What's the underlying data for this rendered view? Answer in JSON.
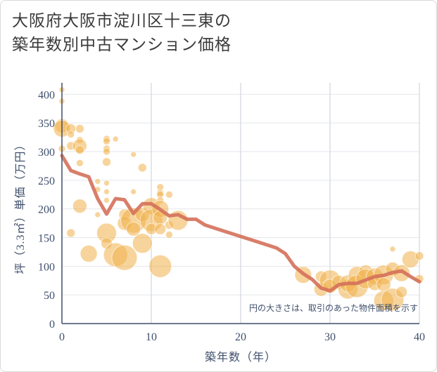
{
  "title_lines": [
    "大阪府大阪市淀川区十三東の",
    "築年数別中古マンション価格"
  ],
  "chart_data": {
    "type": "scatter",
    "title": "大阪府大阪市淀川区十三東の築年数別中古マンション価格",
    "xlabel": "築年数（年）",
    "ylabel": "坪（3.3㎡）単価（万円）",
    "xlim": [
      0,
      40
    ],
    "ylim": [
      0,
      420
    ],
    "xticks": [
      0,
      10,
      20,
      30,
      40
    ],
    "yticks": [
      0,
      50,
      100,
      150,
      200,
      250,
      300,
      350,
      400
    ],
    "grid": true,
    "note": "円の大きさは、取引のあった物件面積を示す",
    "colors": {
      "bubble": "#f0b04a",
      "line": "#d4705a"
    },
    "series": [
      {
        "kind": "bubbles",
        "points": [
          {
            "x": 0,
            "y": 408,
            "s": 4
          },
          {
            "x": 0,
            "y": 388,
            "s": 4
          },
          {
            "x": 0,
            "y": 345,
            "s": 10
          },
          {
            "x": 0,
            "y": 340,
            "s": 12
          },
          {
            "x": 0,
            "y": 305,
            "s": 5
          },
          {
            "x": 1,
            "y": 340,
            "s": 7
          },
          {
            "x": 1,
            "y": 330,
            "s": 5
          },
          {
            "x": 1,
            "y": 310,
            "s": 6
          },
          {
            "x": 1,
            "y": 158,
            "s": 6
          },
          {
            "x": 2,
            "y": 340,
            "s": 6
          },
          {
            "x": 2,
            "y": 320,
            "s": 5
          },
          {
            "x": 2,
            "y": 310,
            "s": 10
          },
          {
            "x": 2,
            "y": 303,
            "s": 6
          },
          {
            "x": 2,
            "y": 280,
            "s": 5
          },
          {
            "x": 2,
            "y": 205,
            "s": 10
          },
          {
            "x": 3,
            "y": 122,
            "s": 12
          },
          {
            "x": 4,
            "y": 248,
            "s": 4
          },
          {
            "x": 4,
            "y": 234,
            "s": 4
          },
          {
            "x": 4,
            "y": 190,
            "s": 4
          },
          {
            "x": 5,
            "y": 322,
            "s": 5
          },
          {
            "x": 5,
            "y": 318,
            "s": 5
          },
          {
            "x": 5,
            "y": 305,
            "s": 5
          },
          {
            "x": 5,
            "y": 300,
            "s": 5
          },
          {
            "x": 5,
            "y": 282,
            "s": 6
          },
          {
            "x": 5,
            "y": 245,
            "s": 4
          },
          {
            "x": 5,
            "y": 230,
            "s": 4
          },
          {
            "x": 5,
            "y": 215,
            "s": 4
          },
          {
            "x": 5,
            "y": 158,
            "s": 14
          },
          {
            "x": 5,
            "y": 140,
            "s": 8
          },
          {
            "x": 6,
            "y": 322,
            "s": 4
          },
          {
            "x": 6,
            "y": 120,
            "s": 17
          },
          {
            "x": 7,
            "y": 190,
            "s": 8
          },
          {
            "x": 7,
            "y": 175,
            "s": 10
          },
          {
            "x": 7,
            "y": 115,
            "s": 18
          },
          {
            "x": 8,
            "y": 295,
            "s": 4
          },
          {
            "x": 8,
            "y": 230,
            "s": 4
          },
          {
            "x": 8,
            "y": 180,
            "s": 18
          },
          {
            "x": 8,
            "y": 165,
            "s": 10
          },
          {
            "x": 9,
            "y": 272,
            "s": 6
          },
          {
            "x": 9,
            "y": 190,
            "s": 10
          },
          {
            "x": 9,
            "y": 140,
            "s": 14
          },
          {
            "x": 10,
            "y": 205,
            "s": 12
          },
          {
            "x": 10,
            "y": 180,
            "s": 16
          },
          {
            "x": 10,
            "y": 165,
            "s": 8
          },
          {
            "x": 11,
            "y": 238,
            "s": 5
          },
          {
            "x": 11,
            "y": 228,
            "s": 5
          },
          {
            "x": 11,
            "y": 225,
            "s": 5
          },
          {
            "x": 11,
            "y": 215,
            "s": 5
          },
          {
            "x": 11,
            "y": 200,
            "s": 12
          },
          {
            "x": 11,
            "y": 185,
            "s": 10
          },
          {
            "x": 11,
            "y": 165,
            "s": 8
          },
          {
            "x": 11,
            "y": 100,
            "s": 16
          },
          {
            "x": 12,
            "y": 225,
            "s": 5
          },
          {
            "x": 12,
            "y": 172,
            "s": 6
          },
          {
            "x": 12,
            "y": 155,
            "s": 5
          },
          {
            "x": 13,
            "y": 180,
            "s": 14
          },
          {
            "x": 27,
            "y": 85,
            "s": 12
          },
          {
            "x": 29,
            "y": 60,
            "s": 10
          },
          {
            "x": 29,
            "y": 82,
            "s": 8
          },
          {
            "x": 30,
            "y": 75,
            "s": 15
          },
          {
            "x": 30,
            "y": 65,
            "s": 10
          },
          {
            "x": 31,
            "y": 72,
            "s": 10
          },
          {
            "x": 32,
            "y": 60,
            "s": 14
          },
          {
            "x": 32,
            "y": 70,
            "s": 12
          },
          {
            "x": 33,
            "y": 85,
            "s": 12
          },
          {
            "x": 33,
            "y": 65,
            "s": 16
          },
          {
            "x": 34,
            "y": 90,
            "s": 10
          },
          {
            "x": 34,
            "y": 78,
            "s": 14
          },
          {
            "x": 35,
            "y": 82,
            "s": 12
          },
          {
            "x": 35,
            "y": 70,
            "s": 10
          },
          {
            "x": 36,
            "y": 85,
            "s": 14
          },
          {
            "x": 36,
            "y": 68,
            "s": 10
          },
          {
            "x": 36,
            "y": 40,
            "s": 14
          },
          {
            "x": 37,
            "y": 42,
            "s": 16
          },
          {
            "x": 37,
            "y": 95,
            "s": 10
          },
          {
            "x": 37,
            "y": 130,
            "s": 4
          },
          {
            "x": 38,
            "y": 88,
            "s": 12
          },
          {
            "x": 38,
            "y": 55,
            "s": 8
          },
          {
            "x": 39,
            "y": 112,
            "s": 12
          },
          {
            "x": 40,
            "y": 118,
            "s": 6
          },
          {
            "x": 40,
            "y": 78,
            "s": 6
          }
        ]
      },
      {
        "kind": "line",
        "x": [
          0,
          1,
          2,
          3,
          4,
          5,
          6,
          7,
          8,
          9,
          10,
          11,
          12,
          13,
          14,
          15,
          16,
          18,
          20,
          22,
          24,
          25,
          26,
          27,
          28,
          29,
          30,
          31,
          32,
          33,
          34,
          35,
          36,
          37,
          38,
          39,
          40
        ],
        "y": [
          293,
          267,
          261,
          256,
          218,
          191,
          218,
          216,
          192,
          209,
          209,
          199,
          188,
          190,
          182,
          182,
          172,
          162,
          152,
          142,
          132,
          122,
          100,
          87,
          77,
          62,
          57,
          68,
          70,
          70,
          76,
          82,
          84,
          89,
          92,
          82,
          73
        ]
      }
    ]
  }
}
